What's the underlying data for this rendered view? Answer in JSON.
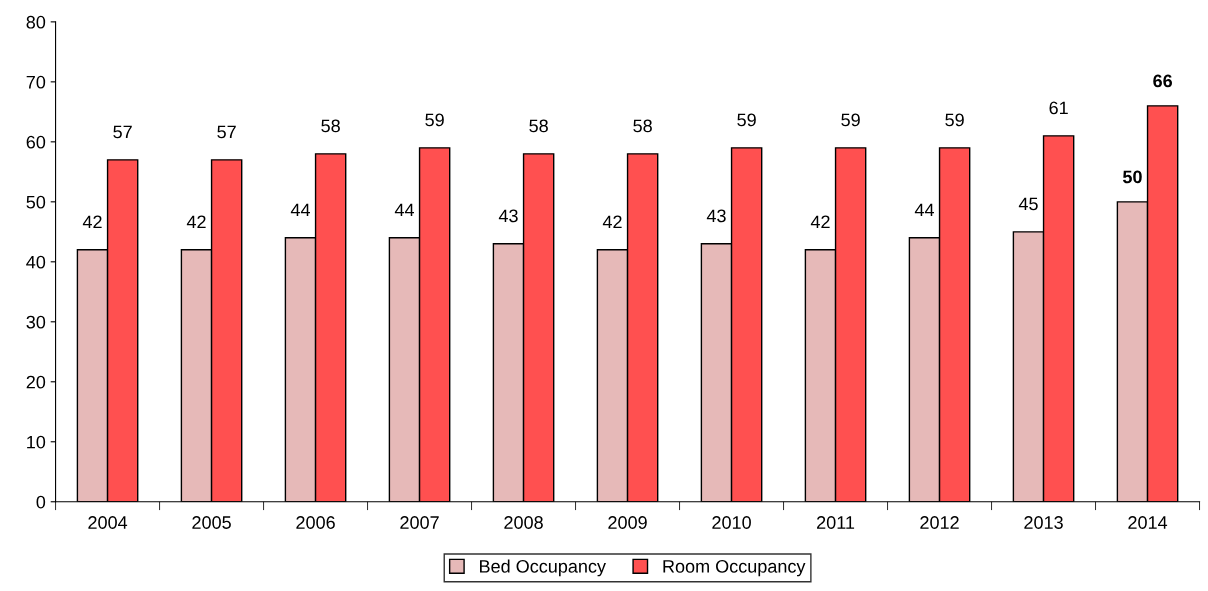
{
  "chart_data": {
    "type": "bar",
    "categories": [
      "2004",
      "2005",
      "2006",
      "2007",
      "2008",
      "2009",
      "2010",
      "2011",
      "2012",
      "2013",
      "2014"
    ],
    "series": [
      {
        "name": "Bed Occupancy",
        "color": "#e6b9b8",
        "values": [
          42,
          42,
          44,
          44,
          43,
          42,
          43,
          42,
          44,
          45,
          50
        ]
      },
      {
        "name": "Room Occupancy",
        "color": "#ff5050",
        "values": [
          57,
          57,
          58,
          59,
          58,
          58,
          59,
          59,
          59,
          61,
          66
        ]
      }
    ],
    "ylim": [
      0,
      80
    ],
    "yticks": [
      0,
      10,
      20,
      30,
      40,
      50,
      60,
      70,
      80
    ],
    "grid": false,
    "legend": "bottom",
    "data_labels": true
  }
}
